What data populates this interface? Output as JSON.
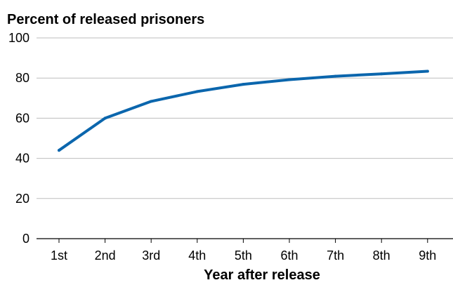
{
  "chart_data": {
    "type": "line",
    "title": "",
    "ylabel": "Percent of released prisoners",
    "xlabel": "Year after release",
    "categories": [
      "1st",
      "2nd",
      "3rd",
      "4th",
      "5th",
      "6th",
      "7th",
      "8th",
      "9th"
    ],
    "series": [
      {
        "values": [
          44,
          60,
          68.4,
          73.3,
          76.9,
          79.2,
          80.9,
          82.1,
          83.4
        ],
        "color": "#0b66ad"
      }
    ],
    "ylim": [
      0,
      100
    ],
    "yticks": [
      "0",
      "20",
      "40",
      "60",
      "80",
      "100"
    ],
    "grid": true,
    "gridColor": "#bdbdbd",
    "legend": "none"
  }
}
